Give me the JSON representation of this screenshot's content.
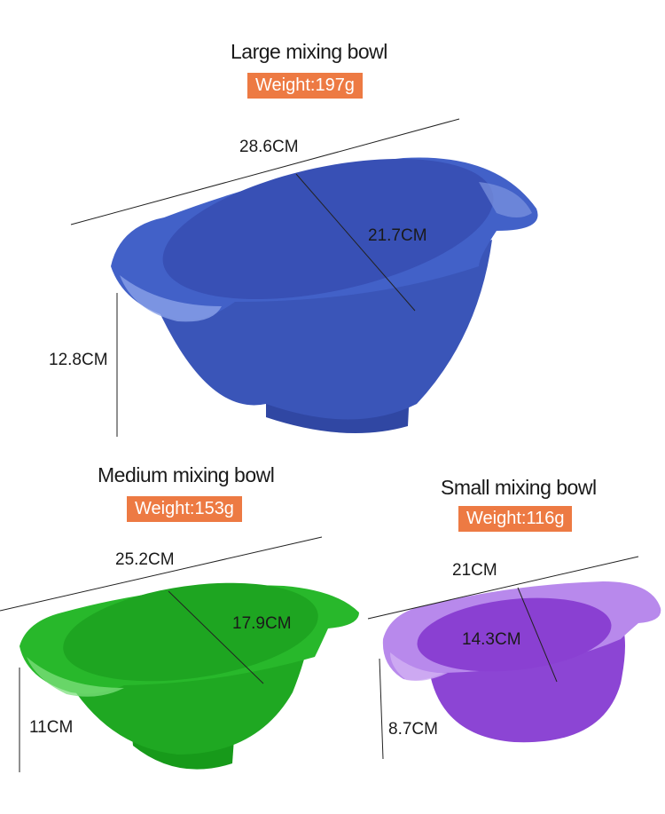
{
  "bowls": [
    {
      "title": "Large mixing bowl",
      "weight": "Weight:197g",
      "width": "28.6CM",
      "depth": "21.7CM",
      "height": "12.8CM",
      "color": "#3a55b8"
    },
    {
      "title": "Medium mixing bowl",
      "weight": "Weight:153g",
      "width": "25.2CM",
      "depth": "17.9CM",
      "height": "11CM",
      "color": "#1fa822"
    },
    {
      "title": "Small mixing bowl",
      "weight": "Weight:116g",
      "width": "21CM",
      "depth": "14.3CM",
      "height": "8.7CM",
      "color": "#8c45d4"
    }
  ],
  "badge_color": "#ed7a43"
}
